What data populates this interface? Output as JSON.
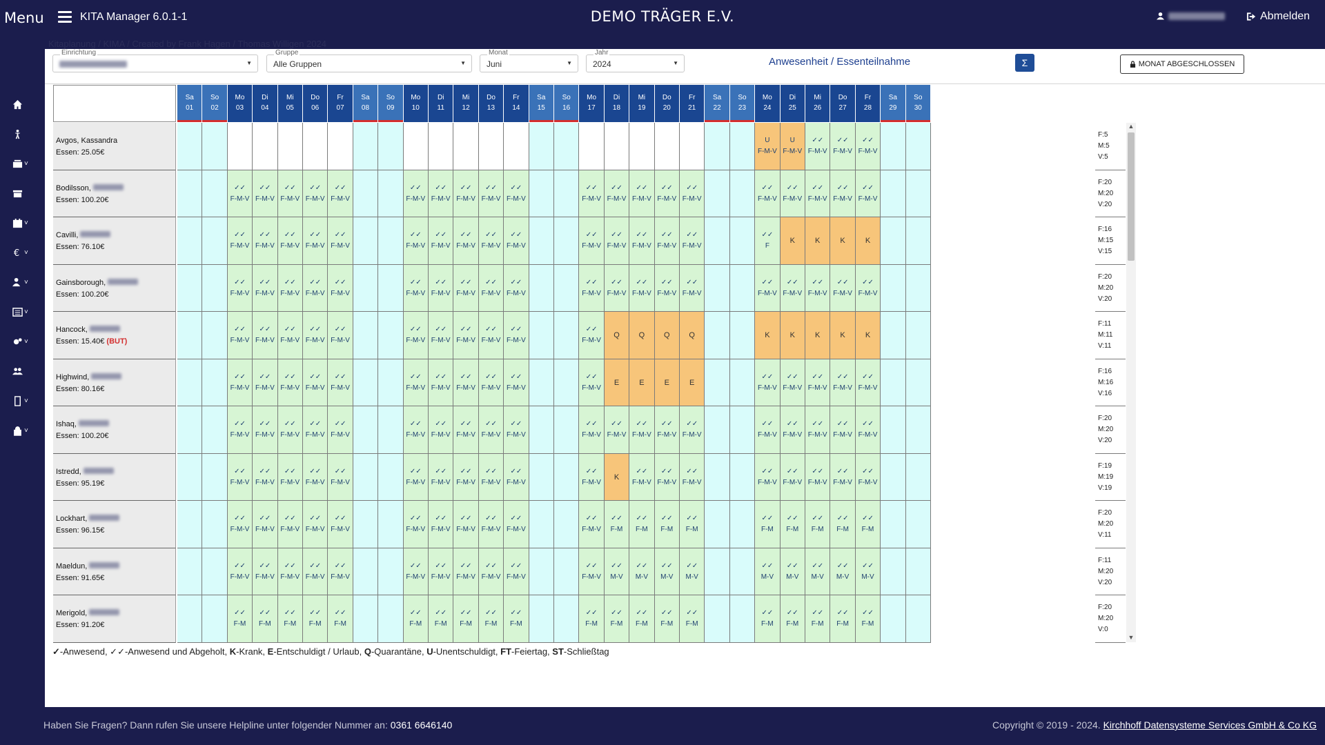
{
  "topbar": {
    "menu_label": "Menu",
    "app_title": "KITA Manager 6.0.1-1",
    "org_title": "DEMO TRÄGER E.V.",
    "logout_label": "Abmelden"
  },
  "breadcrumb_ghost": "Kitaplanung / KIMA / Created by Frank Hagen / Thomas Willigen 2024",
  "filters": {
    "einrichtung_label": "Einrichtung",
    "gruppe_label": "Gruppe",
    "gruppe_value": "Alle Gruppen",
    "monat_label": "Monat",
    "monat_value": "Juni",
    "jahr_label": "Jahr",
    "jahr_value": "2024"
  },
  "section_title": "Anwesenheit / Essenteilnahme",
  "sum_button": "Σ",
  "month_closed_button": "MONAT ABGESCHLOSSEN",
  "days": [
    {
      "wd": "Sa",
      "d": "01"
    },
    {
      "wd": "So",
      "d": "02"
    },
    {
      "wd": "Mo",
      "d": "03"
    },
    {
      "wd": "Di",
      "d": "04"
    },
    {
      "wd": "Mi",
      "d": "05"
    },
    {
      "wd": "Do",
      "d": "06"
    },
    {
      "wd": "Fr",
      "d": "07"
    },
    {
      "wd": "Sa",
      "d": "08"
    },
    {
      "wd": "So",
      "d": "09"
    },
    {
      "wd": "Mo",
      "d": "10"
    },
    {
      "wd": "Di",
      "d": "11"
    },
    {
      "wd": "Mi",
      "d": "12"
    },
    {
      "wd": "Do",
      "d": "13"
    },
    {
      "wd": "Fr",
      "d": "14"
    },
    {
      "wd": "Sa",
      "d": "15"
    },
    {
      "wd": "So",
      "d": "16"
    },
    {
      "wd": "Mo",
      "d": "17"
    },
    {
      "wd": "Di",
      "d": "18"
    },
    {
      "wd": "Mi",
      "d": "19"
    },
    {
      "wd": "Do",
      "d": "20"
    },
    {
      "wd": "Fr",
      "d": "21"
    },
    {
      "wd": "Sa",
      "d": "22"
    },
    {
      "wd": "So",
      "d": "23"
    },
    {
      "wd": "Mo",
      "d": "24"
    },
    {
      "wd": "Di",
      "d": "25"
    },
    {
      "wd": "Mi",
      "d": "26"
    },
    {
      "wd": "Do",
      "d": "27"
    },
    {
      "wd": "Fr",
      "d": "28"
    },
    {
      "wd": "Sa",
      "d": "29"
    },
    {
      "wd": "So",
      "d": "30"
    }
  ],
  "children": [
    {
      "name": "Avgos, Kassandra",
      "essen": "Essen: 25.05€",
      "but": "",
      "sum": [
        "F:5",
        "M:5",
        "V:5"
      ],
      "cells": [
        "",
        "",
        "",
        "",
        "",
        "",
        "",
        "",
        "",
        "",
        "",
        "",
        "",
        "",
        "",
        "",
        "",
        "",
        "",
        "",
        "",
        "",
        "",
        "U|F-M-V",
        "U|F-M-V",
        "✓✓|F-M-V",
        "✓✓|F-M-V",
        "✓✓|F-M-V",
        "",
        ""
      ]
    },
    {
      "name": "Bodilsson,",
      "essen": "Essen: 100.20€",
      "but": "",
      "sum": [
        "F:20",
        "M:20",
        "V:20"
      ],
      "cells": [
        "",
        "",
        "✓✓|F-M-V",
        "✓✓|F-M-V",
        "✓✓|F-M-V",
        "✓✓|F-M-V",
        "✓✓|F-M-V",
        "",
        "",
        "✓✓|F-M-V",
        "✓✓|F-M-V",
        "✓✓|F-M-V",
        "✓✓|F-M-V",
        "✓✓|F-M-V",
        "",
        "",
        "✓✓|F-M-V",
        "✓✓|F-M-V",
        "✓✓|F-M-V",
        "✓✓|F-M-V",
        "✓✓|F-M-V",
        "",
        "",
        "✓✓|F-M-V",
        "✓✓|F-M-V",
        "✓✓|F-M-V",
        "✓✓|F-M-V",
        "✓✓|F-M-V",
        "",
        ""
      ]
    },
    {
      "name": "Cavilli,",
      "essen": "Essen: 76.10€",
      "but": "",
      "sum": [
        "F:16",
        "M:15",
        "V:15"
      ],
      "cells": [
        "",
        "",
        "✓✓|F-M-V",
        "✓✓|F-M-V",
        "✓✓|F-M-V",
        "✓✓|F-M-V",
        "✓✓|F-M-V",
        "",
        "",
        "✓✓|F-M-V",
        "✓✓|F-M-V",
        "✓✓|F-M-V",
        "✓✓|F-M-V",
        "✓✓|F-M-V",
        "",
        "",
        "✓✓|F-M-V",
        "✓✓|F-M-V",
        "✓✓|F-M-V",
        "✓✓|F-M-V",
        "✓✓|F-M-V",
        "",
        "",
        "✓✓|F",
        "K",
        "K",
        "K",
        "K",
        "",
        ""
      ]
    },
    {
      "name": "Gainsborough,",
      "essen": "Essen: 100.20€",
      "but": "",
      "sum": [
        "F:20",
        "M:20",
        "V:20"
      ],
      "cells": [
        "",
        "",
        "✓✓|F-M-V",
        "✓✓|F-M-V",
        "✓✓|F-M-V",
        "✓✓|F-M-V",
        "✓✓|F-M-V",
        "",
        "",
        "✓✓|F-M-V",
        "✓✓|F-M-V",
        "✓✓|F-M-V",
        "✓✓|F-M-V",
        "✓✓|F-M-V",
        "",
        "",
        "✓✓|F-M-V",
        "✓✓|F-M-V",
        "✓✓|F-M-V",
        "✓✓|F-M-V",
        "✓✓|F-M-V",
        "",
        "",
        "✓✓|F-M-V",
        "✓✓|F-M-V",
        "✓✓|F-M-V",
        "✓✓|F-M-V",
        "✓✓|F-M-V",
        "",
        ""
      ]
    },
    {
      "name": "Hancock,",
      "essen": "Essen: 15.40€",
      "but": "(BUT)",
      "sum": [
        "F:11",
        "M:11",
        "V:11"
      ],
      "cells": [
        "",
        "",
        "✓✓|F-M-V",
        "✓✓|F-M-V",
        "✓✓|F-M-V",
        "✓✓|F-M-V",
        "✓✓|F-M-V",
        "",
        "",
        "✓✓|F-M-V",
        "✓✓|F-M-V",
        "✓✓|F-M-V",
        "✓✓|F-M-V",
        "✓✓|F-M-V",
        "",
        "",
        "✓✓|F-M-V",
        "Q",
        "Q",
        "Q",
        "Q",
        "",
        "",
        "K",
        "K",
        "K",
        "K",
        "K",
        "",
        ""
      ]
    },
    {
      "name": "Highwind,",
      "essen": "Essen: 80.16€",
      "but": "",
      "sum": [
        "F:16",
        "M:16",
        "V:16"
      ],
      "cells": [
        "",
        "",
        "✓✓|F-M-V",
        "✓✓|F-M-V",
        "✓✓|F-M-V",
        "✓✓|F-M-V",
        "✓✓|F-M-V",
        "",
        "",
        "✓✓|F-M-V",
        "✓✓|F-M-V",
        "✓✓|F-M-V",
        "✓✓|F-M-V",
        "✓✓|F-M-V",
        "",
        "",
        "✓✓|F-M-V",
        "E",
        "E",
        "E",
        "E",
        "",
        "",
        "✓✓|F-M-V",
        "✓✓|F-M-V",
        "✓✓|F-M-V",
        "✓✓|F-M-V",
        "✓✓|F-M-V",
        "",
        ""
      ]
    },
    {
      "name": "Ishaq,",
      "essen": "Essen: 100.20€",
      "but": "",
      "sum": [
        "F:20",
        "M:20",
        "V:20"
      ],
      "cells": [
        "",
        "",
        "✓✓|F-M-V",
        "✓✓|F-M-V",
        "✓✓|F-M-V",
        "✓✓|F-M-V",
        "✓✓|F-M-V",
        "",
        "",
        "✓✓|F-M-V",
        "✓✓|F-M-V",
        "✓✓|F-M-V",
        "✓✓|F-M-V",
        "✓✓|F-M-V",
        "",
        "",
        "✓✓|F-M-V",
        "✓✓|F-M-V",
        "✓✓|F-M-V",
        "✓✓|F-M-V",
        "✓✓|F-M-V",
        "",
        "",
        "✓✓|F-M-V",
        "✓✓|F-M-V",
        "✓✓|F-M-V",
        "✓✓|F-M-V",
        "✓✓|F-M-V",
        "",
        ""
      ]
    },
    {
      "name": "Istredd,",
      "essen": "Essen: 95.19€",
      "but": "",
      "sum": [
        "F:19",
        "M:19",
        "V:19"
      ],
      "cells": [
        "",
        "",
        "✓✓|F-M-V",
        "✓✓|F-M-V",
        "✓✓|F-M-V",
        "✓✓|F-M-V",
        "✓✓|F-M-V",
        "",
        "",
        "✓✓|F-M-V",
        "✓✓|F-M-V",
        "✓✓|F-M-V",
        "✓✓|F-M-V",
        "✓✓|F-M-V",
        "",
        "",
        "✓✓|F-M-V",
        "K",
        "✓✓|F-M-V",
        "✓✓|F-M-V",
        "✓✓|F-M-V",
        "",
        "",
        "✓✓|F-M-V",
        "✓✓|F-M-V",
        "✓✓|F-M-V",
        "✓✓|F-M-V",
        "✓✓|F-M-V",
        "",
        ""
      ]
    },
    {
      "name": "Lockhart,",
      "essen": "Essen: 96.15€",
      "but": "",
      "sum": [
        "F:20",
        "M:20",
        "V:11"
      ],
      "cells": [
        "",
        "",
        "✓✓|F-M-V",
        "✓✓|F-M-V",
        "✓✓|F-M-V",
        "✓✓|F-M-V",
        "✓✓|F-M-V",
        "",
        "",
        "✓✓|F-M-V",
        "✓✓|F-M-V",
        "✓✓|F-M-V",
        "✓✓|F-M-V",
        "✓✓|F-M-V",
        "",
        "",
        "✓✓|F-M-V",
        "✓✓|F-M",
        "✓✓|F-M",
        "✓✓|F-M",
        "✓✓|F-M",
        "",
        "",
        "✓✓|F-M",
        "✓✓|F-M",
        "✓✓|F-M",
        "✓✓|F-M",
        "✓✓|F-M",
        "",
        ""
      ]
    },
    {
      "name": "Maeldun,",
      "essen": "Essen: 91.65€",
      "but": "",
      "sum": [
        "F:11",
        "M:20",
        "V:20"
      ],
      "cells": [
        "",
        "",
        "✓✓|F-M-V",
        "✓✓|F-M-V",
        "✓✓|F-M-V",
        "✓✓|F-M-V",
        "✓✓|F-M-V",
        "",
        "",
        "✓✓|F-M-V",
        "✓✓|F-M-V",
        "✓✓|F-M-V",
        "✓✓|F-M-V",
        "✓✓|F-M-V",
        "",
        "",
        "✓✓|F-M-V",
        "✓✓|M-V",
        "✓✓|M-V",
        "✓✓|M-V",
        "✓✓|M-V",
        "",
        "",
        "✓✓|M-V",
        "✓✓|M-V",
        "✓✓|M-V",
        "✓✓|M-V",
        "✓✓|M-V",
        "",
        ""
      ]
    },
    {
      "name": "Merigold,",
      "essen": "Essen: 91.20€",
      "but": "",
      "sum": [
        "F:20",
        "M:20",
        "V:0"
      ],
      "cells": [
        "",
        "",
        "✓✓|F-M",
        "✓✓|F-M",
        "✓✓|F-M",
        "✓✓|F-M",
        "✓✓|F-M",
        "",
        "",
        "✓✓|F-M",
        "✓✓|F-M",
        "✓✓|F-M",
        "✓✓|F-M",
        "✓✓|F-M",
        "",
        "",
        "✓✓|F-M",
        "✓✓|F-M",
        "✓✓|F-M",
        "✓✓|F-M",
        "✓✓|F-M",
        "",
        "",
        "✓✓|F-M",
        "✓✓|F-M",
        "✓✓|F-M",
        "✓✓|F-M",
        "✓✓|F-M",
        "",
        ""
      ]
    }
  ],
  "legend": [
    {
      "k": "✓",
      "t": "-Anwesend, "
    },
    {
      "k": "",
      "t": "✓✓-Anwesend und Abgeholt, "
    },
    {
      "k": "K",
      "t": "-Krank, "
    },
    {
      "k": "E",
      "t": "-Entschuldigt / Urlaub, "
    },
    {
      "k": "Q",
      "t": "-Quarantäne, "
    },
    {
      "k": "U",
      "t": "-Unentschuldigt, "
    },
    {
      "k": "FT",
      "t": "-Feiertag, "
    },
    {
      "k": "ST",
      "t": "-Schließtag"
    }
  ],
  "footer": {
    "question": "Haben Sie Fragen? Dann rufen Sie unsere Helpline unter folgender Nummer an: ",
    "phone": "0361 6646140",
    "copyright": "Copyright © 2019 - 2024. ",
    "company": "Kirchhoff Datensysteme Services GmbH & Co KG"
  },
  "colors": {
    "navy": "#1b1d4d",
    "header_weekday": "#1a4691",
    "header_weekend": "#3a72b8",
    "present": "#d7f5d4",
    "absent": "#f7c57a",
    "weekend": "#d9fcfb",
    "empty": "#ffffff"
  },
  "sidebar_icons": [
    "home-icon",
    "child-icon",
    "stack-icon",
    "archive-icon",
    "calendar-icon",
    "euro-icon",
    "user-cog-icon",
    "list-icon",
    "settings-icon",
    "users-icon",
    "mobile-icon",
    "lock-icon"
  ]
}
